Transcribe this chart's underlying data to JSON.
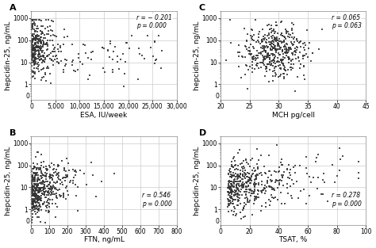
{
  "panels": [
    {
      "label": "A",
      "xlabel": "ESA, IU/week",
      "ylabel": "hepcidin-25, ng/mL",
      "annotation": "r = − 0.201\np = 0.000",
      "xlim": [
        0,
        30000
      ],
      "xticks": [
        0,
        5000,
        10000,
        15000,
        20000,
        25000,
        30000
      ],
      "xticklabels": [
        "0",
        "5,000",
        "10,000",
        "15,000",
        "20,000",
        "25,000",
        "30,000"
      ],
      "ylim_log": [
        0.2,
        2000
      ],
      "yticks": [
        1,
        10,
        100,
        1000
      ],
      "yticklabels": [
        "1",
        "10",
        "100",
        "1000"
      ],
      "seed": 42,
      "n_cluster": 350,
      "n_sparse": 60
    },
    {
      "label": "C",
      "xlabel": "MCH pg/cell",
      "ylabel": "hepcidin-25, ng/mL",
      "annotation": "r = 0.065\np = 0.063",
      "xlim": [
        20,
        45
      ],
      "xticks": [
        20,
        25,
        30,
        35,
        40,
        45
      ],
      "xticklabels": [
        "20",
        "25",
        "30",
        "35",
        "40",
        "45"
      ],
      "ylim_log": [
        0.2,
        2000
      ],
      "yticks": [
        1,
        10,
        100,
        1000
      ],
      "yticklabels": [
        "1",
        "10",
        "100",
        "1000"
      ],
      "seed": 7,
      "n_cluster": 450,
      "n_sparse": 0
    },
    {
      "label": "B",
      "xlabel": "FTN, ng/mL",
      "ylabel": "hepcidin-25, ng/mL",
      "annotation": "r = 0.546\np = 0.000",
      "xlim": [
        0,
        800
      ],
      "xticks": [
        0,
        100,
        200,
        300,
        400,
        500,
        600,
        700,
        800
      ],
      "xticklabels": [
        "0",
        "100",
        "200",
        "300",
        "400",
        "500",
        "600",
        "700",
        "800"
      ],
      "ylim_log": [
        0.2,
        2000
      ],
      "yticks": [
        1,
        10,
        100,
        1000
      ],
      "yticklabels": [
        "1",
        "10",
        "100",
        "1000"
      ],
      "seed": 15,
      "n_cluster": 500,
      "n_sparse": 0
    },
    {
      "label": "D",
      "xlabel": "TSAT, %",
      "ylabel": "hepcidin-25, ng/mL",
      "annotation": "r = 0.278\np = 0.000",
      "xlim": [
        0,
        100
      ],
      "xticks": [
        0,
        20,
        40,
        60,
        80,
        100
      ],
      "xticklabels": [
        "0",
        "20",
        "40",
        "60",
        "80",
        "100"
      ],
      "ylim_log": [
        0.2,
        2000
      ],
      "yticks": [
        1,
        10,
        100,
        1000
      ],
      "yticklabels": [
        "1",
        "10",
        "100",
        "1000"
      ],
      "seed": 23,
      "n_cluster": 480,
      "n_sparse": 0
    }
  ],
  "dot_color": "#333333",
  "dot_size": 2.5,
  "dot_alpha": 0.85,
  "grid_color": "#cccccc",
  "background_color": "#ffffff",
  "annotation_fontsize": 5.5,
  "label_fontsize": 6.5,
  "tick_fontsize": 5.5,
  "panel_label_fontsize": 8
}
